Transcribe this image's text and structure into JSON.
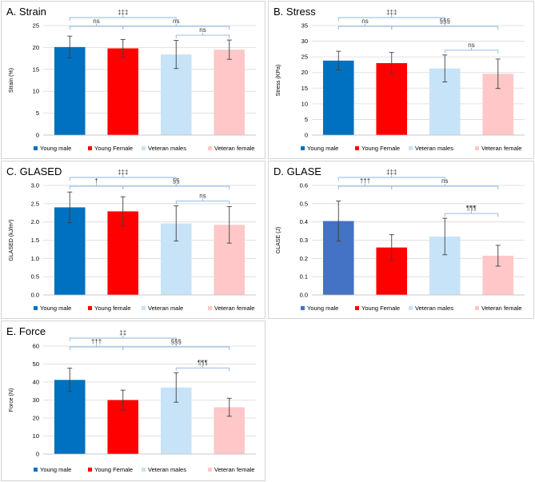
{
  "chart_data": [
    {
      "type": "bar",
      "title": "A. Strain",
      "ylabel": "Strain (%)",
      "ylim": [
        0,
        25
      ],
      "yticks": [
        0,
        5,
        10,
        15,
        20,
        25
      ],
      "categories": [
        "Young male",
        "Young Female",
        "Veteran males",
        "Veteran female"
      ],
      "values": [
        20.1,
        19.8,
        18.4,
        19.5
      ],
      "errors": [
        2.5,
        2.0,
        3.2,
        2.2
      ],
      "colors": [
        "#0070c0",
        "#ff0000",
        "#c7e3f8",
        "#ffc7c7"
      ],
      "annotations": [
        {
          "from": 0,
          "to": 2,
          "level": 1,
          "label": "‡‡‡"
        },
        {
          "from": 0,
          "to": 1,
          "level": 0,
          "label": "ns"
        },
        {
          "from": 1,
          "to": 3,
          "level": 0,
          "label": "ns"
        },
        {
          "from": 2,
          "to": 3,
          "level": -1,
          "label": "ns"
        }
      ],
      "legend": [
        "Young male",
        "Young Female",
        "Veteran males",
        "Veteran female"
      ]
    },
    {
      "type": "bar",
      "title": "B. Stress",
      "ylabel": "Stress (KPa)",
      "ylim": [
        0,
        35
      ],
      "yticks": [
        0,
        5,
        10,
        15,
        20,
        25,
        30,
        35
      ],
      "categories": [
        "Young male",
        "Young Female",
        "Veteran males",
        "Veteran female"
      ],
      "values": [
        23.8,
        23.0,
        21.3,
        19.6
      ],
      "errors": [
        3.0,
        3.4,
        4.3,
        4.7
      ],
      "colors": [
        "#0070c0",
        "#ff0000",
        "#c7e3f8",
        "#ffc7c7"
      ],
      "annotations": [
        {
          "from": 0,
          "to": 2,
          "level": 1,
          "label": "‡‡‡"
        },
        {
          "from": 0,
          "to": 1,
          "level": 0,
          "label": "ns"
        },
        {
          "from": 1,
          "to": 3,
          "level": 0,
          "label": "§§§"
        },
        {
          "from": 2,
          "to": 3,
          "level": -1,
          "label": "ns"
        }
      ],
      "legend": [
        "Young male",
        "Young Female",
        "Veteran males",
        "Veteran female"
      ]
    },
    {
      "type": "bar",
      "title": "C. GLASED",
      "ylabel": "GLASED (kJ/m³)",
      "ylim": [
        0,
        3.0
      ],
      "yticks": [
        0.0,
        0.5,
        1.0,
        1.5,
        2.0,
        2.5,
        3.0
      ],
      "categories": [
        "Young male",
        "Young female",
        "Veteran male",
        "Veteran female"
      ],
      "values": [
        2.4,
        2.29,
        1.96,
        1.92
      ],
      "errors": [
        0.42,
        0.4,
        0.48,
        0.5
      ],
      "colors": [
        "#0070c0",
        "#ff0000",
        "#c7e3f8",
        "#ffc7c7"
      ],
      "annotations": [
        {
          "from": 0,
          "to": 2,
          "level": 1,
          "label": "‡‡‡"
        },
        {
          "from": 0,
          "to": 1,
          "level": 0,
          "label": "†"
        },
        {
          "from": 1,
          "to": 3,
          "level": 0,
          "label": "§§"
        },
        {
          "from": 2,
          "to": 3,
          "level": -1,
          "label": "ns"
        }
      ],
      "legend": [
        "Young male",
        "Young female",
        "Veteran male",
        "Veteran female"
      ]
    },
    {
      "type": "bar",
      "title": "D. GLASE",
      "ylabel": "GLASE (J)",
      "ylim": [
        0,
        0.6
      ],
      "yticks": [
        0.0,
        0.1,
        0.2,
        0.3,
        0.4,
        0.5,
        0.6
      ],
      "categories": [
        "Young male",
        "Young Female",
        "Veteran males",
        "Veteran female"
      ],
      "values": [
        0.405,
        0.26,
        0.32,
        0.215
      ],
      "errors": [
        0.11,
        0.07,
        0.1,
        0.057
      ],
      "colors": [
        "#4472c4",
        "#ff0000",
        "#c7e3f8",
        "#ffc7c7"
      ],
      "annotations": [
        {
          "from": 0,
          "to": 2,
          "level": 1,
          "label": "‡‡‡"
        },
        {
          "from": 0,
          "to": 1,
          "level": 0,
          "label": "†††"
        },
        {
          "from": 1,
          "to": 3,
          "level": 0,
          "label": "ns"
        },
        {
          "from": 2,
          "to": 3,
          "level": -1,
          "label": "¶¶¶"
        }
      ],
      "legend": [
        "Young male",
        "Young Female",
        "Veteran males",
        "Veteran female"
      ]
    },
    {
      "type": "bar",
      "title": "E. Force",
      "ylabel": "Force (N)",
      "ylim": [
        0,
        60
      ],
      "yticks": [
        0,
        10,
        20,
        30,
        40,
        50,
        60
      ],
      "categories": [
        "Young male",
        "Young Female",
        "Veteran males",
        "Veteran female"
      ],
      "values": [
        41.2,
        30.0,
        37.0,
        26.0
      ],
      "errors": [
        6.5,
        5.5,
        8.2,
        5.0
      ],
      "colors": [
        "#0070c0",
        "#ff0000",
        "#c7e3f8",
        "#ffc7c7"
      ],
      "annotations": [
        {
          "from": 0,
          "to": 2,
          "level": 1,
          "label": "‡‡"
        },
        {
          "from": 0,
          "to": 1,
          "level": 0,
          "label": "†††"
        },
        {
          "from": 1,
          "to": 3,
          "level": 0,
          "label": "§§§"
        },
        {
          "from": 2,
          "to": 3,
          "level": -1,
          "label": "¶¶¶"
        }
      ],
      "legend": [
        "Young male",
        "Young Female",
        "Veteran males",
        "Veteran female"
      ]
    }
  ]
}
